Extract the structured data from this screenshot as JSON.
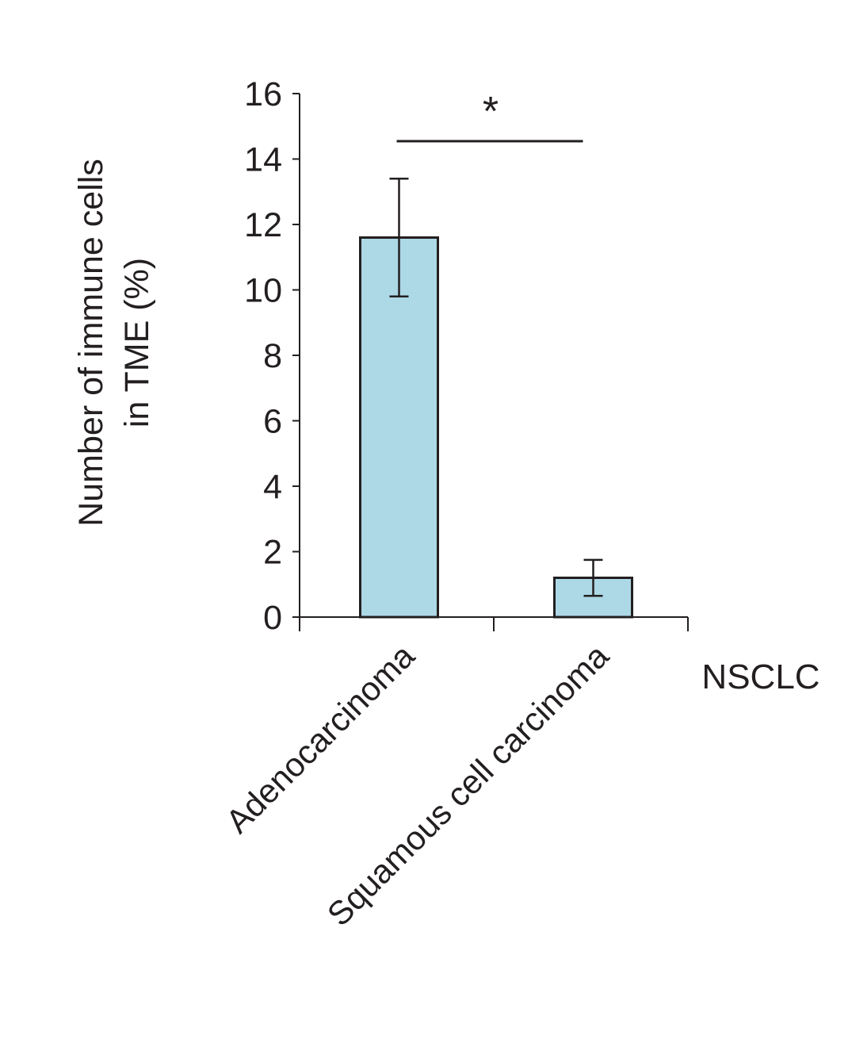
{
  "chart_data": {
    "type": "bar",
    "categories": [
      "Adenocarcinoma",
      "Squamous cell carcinoma"
    ],
    "values": [
      11.6,
      1.2
    ],
    "error": [
      1.8,
      0.55
    ],
    "ylabel_lines": [
      "Number of immune cells",
      "in TME (%)"
    ],
    "xlabel": "NSCLC",
    "ylim": [
      0,
      16
    ],
    "yticks": [
      0,
      2,
      4,
      6,
      8,
      10,
      12,
      14,
      16
    ],
    "significance": {
      "between": [
        0,
        1
      ],
      "label": "*"
    },
    "bar_color": "#add8e6",
    "edge_color": "#231f20",
    "grid": false,
    "legend": "none"
  }
}
